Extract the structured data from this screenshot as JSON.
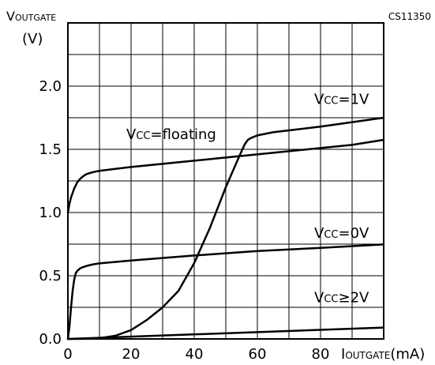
{
  "chart_data": {
    "type": "line",
    "figure_id": "CS11350",
    "ylabel": {
      "main": "V",
      "sub": "OUTGATE",
      "unit": "(V)"
    },
    "xlabel": {
      "main": "I",
      "sub": "OUTGATE",
      "unit": "(mA)"
    },
    "xlim": [
      0,
      100
    ],
    "ylim": [
      0,
      2.5
    ],
    "x_ticks": [
      0,
      20,
      40,
      60,
      80
    ],
    "x_tick_labels": [
      "0",
      "20",
      "40",
      "60",
      "80"
    ],
    "y_ticks": [
      0,
      0.5,
      1.0,
      1.5,
      2.0
    ],
    "y_tick_labels": [
      "0.0",
      "0.5",
      "1.0",
      "1.5",
      "2.0"
    ],
    "grid": true,
    "series": [
      {
        "name": "VCC = floating",
        "label": {
          "main": "V",
          "sub": "CC",
          "rest": "=floating"
        },
        "x": [
          0,
          0.5,
          1,
          2,
          3,
          4,
          5,
          6,
          8,
          10,
          15,
          20,
          30,
          40,
          50,
          60,
          70,
          80,
          90,
          100
        ],
        "y": [
          1.0,
          1.07,
          1.12,
          1.19,
          1.24,
          1.27,
          1.29,
          1.305,
          1.32,
          1.33,
          1.345,
          1.36,
          1.385,
          1.41,
          1.435,
          1.46,
          1.485,
          1.51,
          1.535,
          1.575
        ]
      },
      {
        "name": "VCC = 1V",
        "label": {
          "main": "V",
          "sub": "CC",
          "rest": "=1V"
        },
        "x": [
          0,
          5,
          10,
          15,
          20,
          25,
          30,
          35,
          40,
          45,
          50,
          54,
          56,
          57,
          58,
          60,
          65,
          70,
          80,
          90,
          100
        ],
        "y": [
          0.0,
          0.001,
          0.006,
          0.025,
          0.07,
          0.15,
          0.25,
          0.38,
          0.6,
          0.88,
          1.2,
          1.43,
          1.54,
          1.575,
          1.59,
          1.61,
          1.635,
          1.65,
          1.68,
          1.715,
          1.75
        ]
      },
      {
        "name": "VCC = 0V",
        "label": {
          "main": "V",
          "sub": "CC",
          "rest": "=0V"
        },
        "x": [
          0,
          0.5,
          1,
          1.5,
          2,
          2.5,
          3,
          4,
          5,
          6,
          8,
          10,
          20,
          40,
          60,
          80,
          100
        ],
        "y": [
          0.0,
          0.1,
          0.25,
          0.38,
          0.47,
          0.52,
          0.54,
          0.56,
          0.57,
          0.578,
          0.59,
          0.598,
          0.62,
          0.66,
          0.695,
          0.72,
          0.748
        ]
      },
      {
        "name": "VCC ≥ 2V",
        "label": {
          "main": "V",
          "sub": "CC",
          "rest": "≥2V"
        },
        "x": [
          0,
          100
        ],
        "y": [
          0.0,
          0.09
        ]
      }
    ],
    "annotations": [
      {
        "series": "VCC = floating",
        "x": 18.5,
        "y": 1.58
      },
      {
        "series": "VCC = 1V",
        "x": 78,
        "y": 1.86
      },
      {
        "series": "VCC = 0V",
        "x": 78,
        "y": 0.8
      },
      {
        "series": "VCC ≥ 2V",
        "x": 78,
        "y": 0.29
      }
    ]
  }
}
